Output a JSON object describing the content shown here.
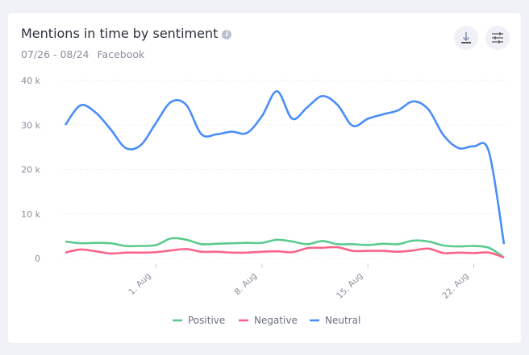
{
  "header": {
    "title": "Mentions in time by sentiment",
    "info_icon": "info-icon",
    "date_range": "07/26 - 08/24",
    "source": "Facebook"
  },
  "buttons": {
    "download": "download-icon",
    "settings": "sliders-icon"
  },
  "chart_data": {
    "type": "line",
    "x_start": "07/26",
    "x_end": "08/24",
    "x_tick_labels": [
      "1. Aug",
      "8. Aug",
      "15. Aug",
      "22. Aug"
    ],
    "x_tick_days": [
      6,
      13,
      20,
      27
    ],
    "y_tick_labels": [
      "0",
      "10 k",
      "20 k",
      "30 k",
      "40 k"
    ],
    "ylim": [
      0,
      40000
    ],
    "grid": true,
    "legend_placement": "bottom",
    "series": [
      {
        "name": "Positive",
        "color": "#5ccb8f",
        "values": [
          3800,
          3400,
          3500,
          3400,
          2800,
          2800,
          3000,
          4500,
          4200,
          3200,
          3300,
          3400,
          3500,
          3500,
          4200,
          3800,
          3200,
          3900,
          3200,
          3200,
          3000,
          3300,
          3200,
          4000,
          3800,
          2900,
          2700,
          2800,
          2400,
          200
        ]
      },
      {
        "name": "Negative",
        "color": "#fb6389",
        "values": [
          1300,
          2000,
          1600,
          1100,
          1300,
          1300,
          1400,
          1800,
          2100,
          1500,
          1500,
          1300,
          1300,
          1500,
          1600,
          1400,
          2300,
          2400,
          2500,
          1700,
          1700,
          1700,
          1500,
          1800,
          2200,
          1200,
          1300,
          1200,
          1300,
          200
        ]
      },
      {
        "name": "Neutral",
        "color": "#4b8ef7",
        "values": [
          30000,
          34400,
          32800,
          29000,
          24800,
          25500,
          30500,
          35200,
          34500,
          27900,
          27900,
          28500,
          28200,
          32000,
          37600,
          31400,
          34000,
          36500,
          34500,
          29800,
          31400,
          32400,
          33300,
          35300,
          33500,
          27700,
          24800,
          25200,
          24000,
          3200
        ]
      }
    ]
  }
}
